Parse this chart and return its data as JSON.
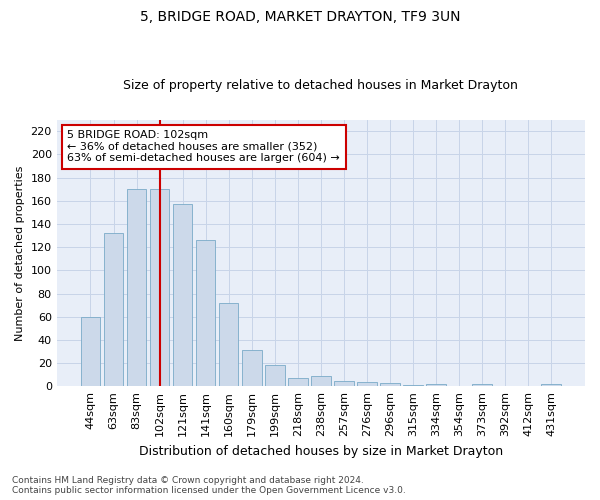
{
  "title": "5, BRIDGE ROAD, MARKET DRAYTON, TF9 3UN",
  "subtitle": "Size of property relative to detached houses in Market Drayton",
  "xlabel": "Distribution of detached houses by size in Market Drayton",
  "ylabel": "Number of detached properties",
  "categories": [
    "44sqm",
    "63sqm",
    "83sqm",
    "102sqm",
    "121sqm",
    "141sqm",
    "160sqm",
    "179sqm",
    "199sqm",
    "218sqm",
    "238sqm",
    "257sqm",
    "276sqm",
    "296sqm",
    "315sqm",
    "334sqm",
    "354sqm",
    "373sqm",
    "392sqm",
    "412sqm",
    "431sqm"
  ],
  "values": [
    60,
    132,
    170,
    170,
    157,
    126,
    72,
    31,
    18,
    7,
    9,
    5,
    4,
    3,
    1,
    2,
    0,
    2,
    0,
    0,
    2
  ],
  "bar_color": "#ccd9ea",
  "bar_edge_color": "#7aaac8",
  "vline_x": 3,
  "vline_color": "#cc0000",
  "annotation_text": "5 BRIDGE ROAD: 102sqm\n← 36% of detached houses are smaller (352)\n63% of semi-detached houses are larger (604) →",
  "annotation_box_facecolor": "#ffffff",
  "annotation_box_edgecolor": "#cc0000",
  "ylim": [
    0,
    230
  ],
  "yticks": [
    0,
    20,
    40,
    60,
    80,
    100,
    120,
    140,
    160,
    180,
    200,
    220
  ],
  "grid_color": "#c8d4e8",
  "fig_facecolor": "#ffffff",
  "axes_facecolor": "#e8eef8",
  "title_fontsize": 10,
  "subtitle_fontsize": 9,
  "tick_fontsize": 8,
  "xlabel_fontsize": 9,
  "ylabel_fontsize": 8,
  "annotation_fontsize": 8,
  "footnote": "Contains HM Land Registry data © Crown copyright and database right 2024.\nContains public sector information licensed under the Open Government Licence v3.0.",
  "footnote_fontsize": 6.5
}
